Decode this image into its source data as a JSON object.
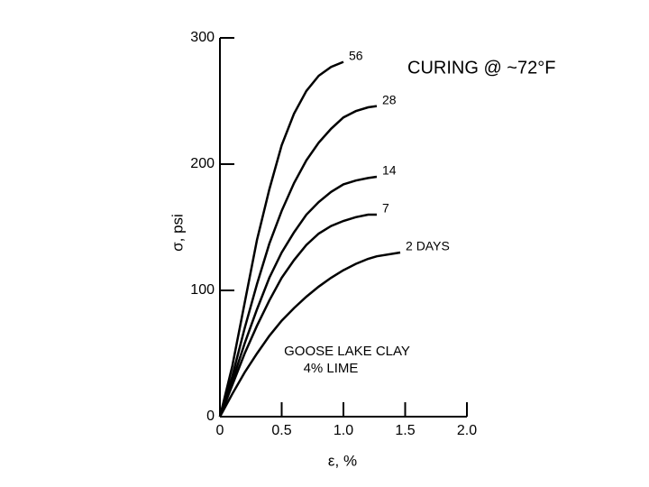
{
  "chart_data": {
    "type": "line",
    "title": "CURING @ ~72°F",
    "annotations": [
      "GOOSE LAKE CLAY",
      "4% LIME"
    ],
    "x_label": "ε, %",
    "y_label": "σ, psi",
    "x": [
      0,
      0.1,
      0.2,
      0.3,
      0.4,
      0.5,
      0.6,
      0.7,
      0.8,
      0.9,
      1.0,
      1.1,
      1.2,
      1.27,
      1.46
    ],
    "series": [
      {
        "name": "56",
        "color": "#000000",
        "values": [
          0,
          40,
          90,
          140,
          180,
          215,
          240,
          258,
          270,
          277,
          281,
          null,
          null,
          null,
          null
        ]
      },
      {
        "name": "28",
        "color": "#000000",
        "values": [
          0,
          32,
          70,
          105,
          137,
          163,
          185,
          203,
          217,
          228,
          237,
          242,
          245,
          246,
          null
        ]
      },
      {
        "name": "14",
        "color": "#000000",
        "values": [
          0,
          28,
          58,
          85,
          110,
          130,
          146,
          160,
          170,
          178,
          184,
          187,
          189,
          190,
          null
        ]
      },
      {
        "name": "7",
        "color": "#000000",
        "values": [
          0,
          25,
          50,
          72,
          92,
          110,
          124,
          136,
          145,
          151,
          155,
          158,
          160,
          160,
          null
        ]
      },
      {
        "name": "2 DAYS",
        "color": "#000000",
        "values": [
          0,
          18,
          35,
          50,
          64,
          76,
          86,
          95,
          103,
          110,
          116,
          121,
          125,
          127,
          130
        ]
      }
    ],
    "xlim": [
      0,
      2.0
    ],
    "ylim": [
      0,
      300
    ],
    "xticks": [
      0,
      0.5,
      {
        "value": 1.0,
        "label": "1.0"
      },
      1.5,
      {
        "value": 2.0,
        "label": "2.0"
      }
    ],
    "yticks": [
      0,
      100,
      200,
      300
    ],
    "grid": false
  }
}
